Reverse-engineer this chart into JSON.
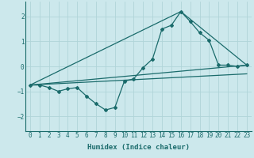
{
  "xlabel": "Humidex (Indice chaleur)",
  "ylabel": "",
  "xlim": [
    -0.5,
    23.5
  ],
  "ylim": [
    -2.6,
    2.6
  ],
  "xticks": [
    0,
    1,
    2,
    3,
    4,
    5,
    6,
    7,
    8,
    9,
    10,
    11,
    12,
    13,
    14,
    15,
    16,
    17,
    18,
    19,
    20,
    21,
    22,
    23
  ],
  "yticks": [
    -2,
    -1,
    0,
    1,
    2
  ],
  "bg_color": "#cce8ec",
  "grid_color": "#b0d4d8",
  "line_color": "#1a6b6b",
  "data_x": [
    0,
    1,
    2,
    3,
    4,
    5,
    6,
    7,
    8,
    9,
    10,
    11,
    12,
    13,
    14,
    15,
    16,
    17,
    18,
    19,
    20,
    21,
    22,
    23
  ],
  "data_y": [
    -0.75,
    -0.75,
    -0.85,
    -1.0,
    -0.9,
    -0.85,
    -1.2,
    -1.5,
    -1.75,
    -1.65,
    -0.6,
    -0.5,
    -0.05,
    0.3,
    1.5,
    1.65,
    2.2,
    1.8,
    1.35,
    1.05,
    0.05,
    0.05,
    0.0,
    0.05
  ],
  "line1_x": [
    0,
    23
  ],
  "line1_y": [
    -0.75,
    0.05
  ],
  "line2_x": [
    0,
    16,
    23
  ],
  "line2_y": [
    -0.75,
    2.2,
    0.05
  ],
  "line3_x": [
    0,
    23
  ],
  "line3_y": [
    -0.75,
    -0.3
  ]
}
